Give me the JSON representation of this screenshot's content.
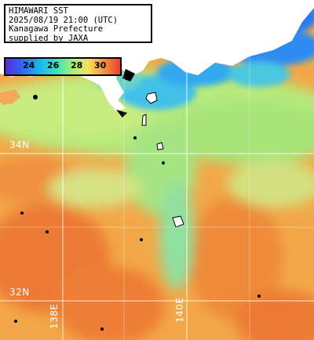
{
  "title_lines": [
    "HIMAWARI SST",
    "2025/08/19 21:00 (UTC)",
    "Kanagawa Prefecture",
    "supplied by JAXA"
  ],
  "colorbar": {
    "ticks": [
      "24",
      "26",
      "28",
      "30"
    ],
    "colors": [
      "#5a2bd0",
      "#2f66ff",
      "#18b8ee",
      "#3fe2c0",
      "#aef070",
      "#f5e060",
      "#f6a040",
      "#ea4030"
    ]
  },
  "grid_labels": {
    "lat_34": "34N",
    "lat_32": "32N",
    "lon_138": "138E",
    "lon_140": "140E"
  },
  "colors": {
    "land": "#ffffff",
    "warm_sea": "#f0a040",
    "hot_sea": "#ec7030",
    "cool_sea": "#9ee878",
    "cold_sea": "#3fb8f0",
    "gridline": "#ffffff"
  }
}
